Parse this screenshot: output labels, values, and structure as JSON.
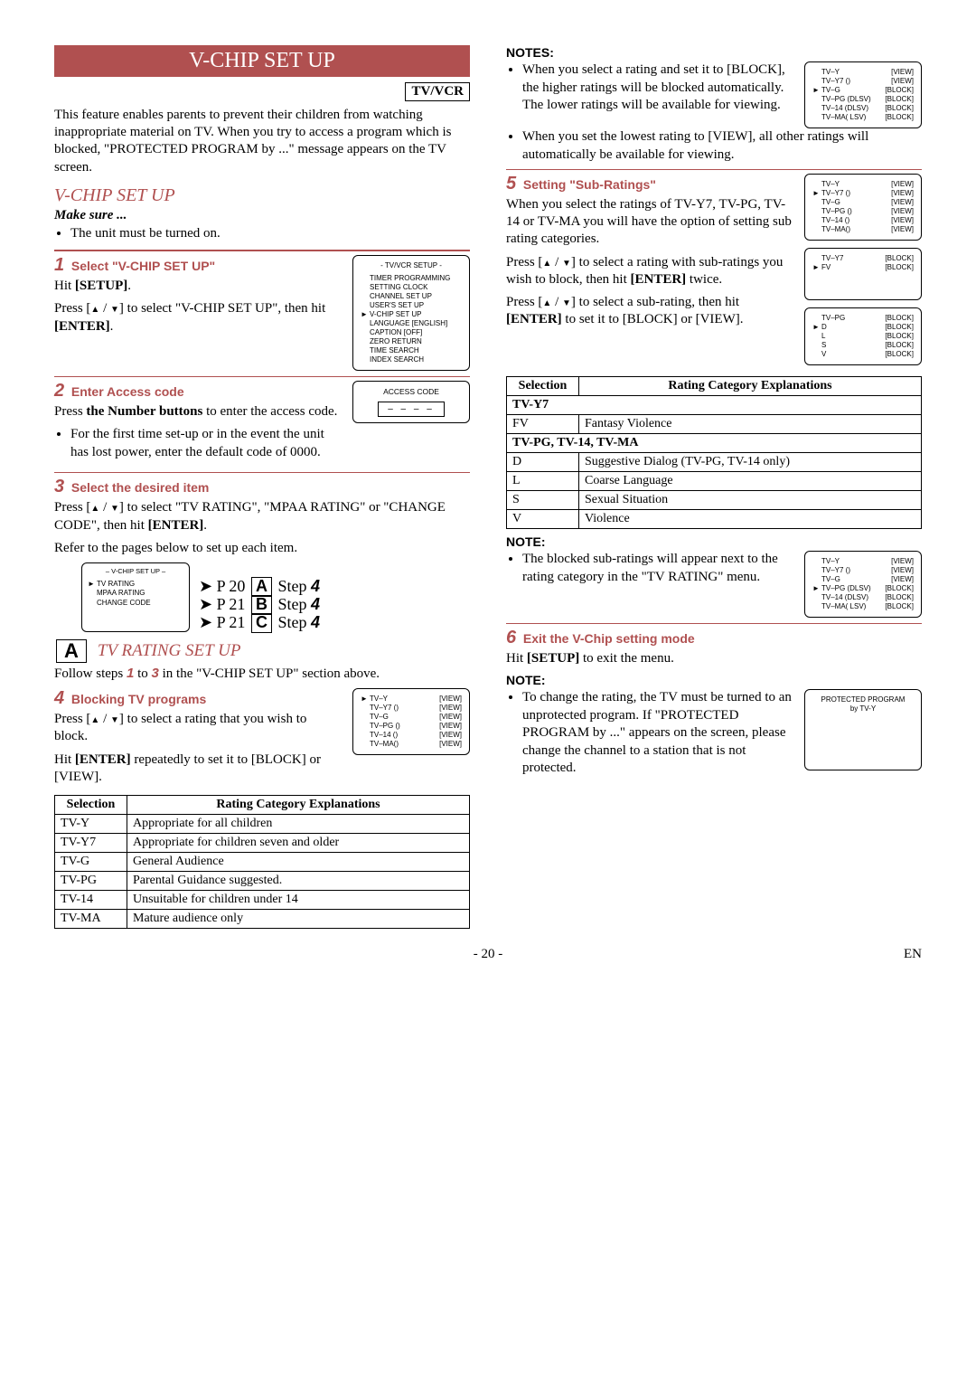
{
  "page_number": "- 20 -",
  "lang_code": "EN",
  "left": {
    "banner": "V-CHIP SET UP",
    "tvvcr": "TV/VCR",
    "intro": "This feature enables parents to prevent their children from watching inappropriate material on TV. When you try to access a program which is blocked, \"PROTECTED PROGRAM by ...\" message appears on the TV screen.",
    "section_ital": "V-CHIP SET UP",
    "makesure": "Make sure ...",
    "makesure_item": "The unit must be turned on.",
    "step1_title": "Select \"V-CHIP SET UP\"",
    "step1_body_a": "Hit ",
    "step1_body_b": "[SETUP]",
    "step1_body_c": ".",
    "step1_body2_a": "Press [",
    "step1_body2_b": "] to select \"V-CHIP SET UP\", then hit ",
    "step1_body2_c": "[ENTER]",
    "step1_body2_d": ".",
    "step2_title": "Enter Access code",
    "step2_body1_a": "Press ",
    "step2_body1_b": "the Number buttons",
    "step2_body1_c": " to enter the access code.",
    "step2_bullet": "For the first time set-up or in the event the unit has lost power, enter the default code of 0000.",
    "step3_title": "Select the desired item",
    "step3_body1_a": "Press [",
    "step3_body1_b": "] to select \"TV RATING\", \"MPAA RATING\" or \"CHANGE CODE\", then hit ",
    "step3_body1_c": "[ENTER]",
    "step3_body1_d": ".",
    "step3_body2": "Refer to the pages below to set up each item.",
    "arrow1": "P 20 ",
    "arrowA": "A",
    "arrowStep": " Step ",
    "arrowNum": "4",
    "arrow2": "P 21 ",
    "arrowB": "B",
    "arrow3": "P 21 ",
    "arrowC": "C",
    "tvrating_title": "TV RATING SET UP",
    "tvrating_intro_a": "Follow steps ",
    "tvrating_intro_b": " to ",
    "tvrating_intro_c": " in the \"V-CHIP SET UP\" section above.",
    "num1": "1",
    "num3": "3",
    "step4_title": "Blocking TV programs",
    "step4_body1_a": "Press [",
    "step4_body1_b": "] to select a rating that you wish to block.",
    "step4_body2_a": "Hit ",
    "step4_body2_b": "[ENTER]",
    "step4_body2_c": " repeatedly to set it to [BLOCK] or [VIEW].",
    "table1": {
      "h1": "Selection",
      "h2": "Rating Category Explanations",
      "rows": [
        [
          "TV-Y",
          "Appropriate for all children"
        ],
        [
          "TV-Y7",
          "Appropriate for children seven and older"
        ],
        [
          "TV-G",
          "General Audience"
        ],
        [
          "TV-PG",
          "Parental Guidance suggested."
        ],
        [
          "TV-14",
          "Unsuitable for children under 14"
        ],
        [
          "TV-MA",
          "Mature audience only"
        ]
      ]
    },
    "osd_setup": {
      "title": "- TV/VCR SETUP -",
      "items": [
        "TIMER PROGRAMMING",
        "SETTING CLOCK",
        "CHANNEL SET UP",
        "USER'S SET UP",
        "V-CHIP SET UP",
        "LANGUAGE   [ENGLISH]",
        "CAPTION   [OFF]",
        "ZERO RETURN",
        "TIME SEARCH",
        "INDEX SEARCH"
      ],
      "cursor_index": 4
    },
    "osd_access": {
      "title": "ACCESS CODE",
      "dashes": "– – – –"
    },
    "osd_vchip": {
      "title": "– V-CHIP SET UP –",
      "items": [
        "TV RATING",
        "MPAA RATING",
        "CHANGE CODE"
      ]
    },
    "osd_tvrating_all_view": {
      "rows": [
        [
          "TV–Y",
          "",
          "[VIEW]"
        ],
        [
          "TV–Y7 (",
          ")",
          "[VIEW]"
        ],
        [
          "TV–G",
          "",
          "[VIEW]"
        ],
        [
          "TV–PG (",
          ")",
          "[VIEW]"
        ],
        [
          "TV–14 (",
          ")",
          "[VIEW]"
        ],
        [
          "TV–MA(",
          ")",
          "[VIEW]"
        ]
      ],
      "cursor_index": 0
    }
  },
  "right": {
    "notes_hd": "NOTES:",
    "note1": "When you select a rating and set it to [BLOCK], the higher ratings will be blocked automatically. The lower ratings will be available for viewing.",
    "note2": "When you set the lowest rating to [VIEW], all other ratings will automatically be available for viewing.",
    "osd_blocked": {
      "rows": [
        [
          "TV–Y",
          "",
          "[VIEW]"
        ],
        [
          "TV–Y7 (",
          ")",
          "[VIEW]"
        ],
        [
          "TV–G",
          "",
          "[BLOCK]"
        ],
        [
          "TV–PG (DLSV)",
          "",
          "[BLOCK]"
        ],
        [
          "TV–14 (DLSV)",
          "",
          "[BLOCK]"
        ],
        [
          "TV–MA(  LSV)",
          "",
          "[BLOCK]"
        ]
      ],
      "cursor_index": 2
    },
    "step5_title": "Setting \"Sub-Ratings\"",
    "step5_body1": "When you select the ratings of TV-Y7, TV-PG, TV-14 or TV-MA you will have the option of setting sub rating categories.",
    "step5_body2_a": "Press [",
    "step5_body2_b": "] to select a rating with sub-ratings you wish to block, then hit ",
    "step5_body2_c": "[ENTER]",
    "step5_body2_d": " twice.",
    "step5_body3_a": "Press [",
    "step5_body3_b": "] to select a sub-rating, then hit ",
    "step5_body3_c": "[ENTER]",
    "step5_body3_d": " to set it to [BLOCK] or [VIEW].",
    "osd_sub_all_view": {
      "rows": [
        [
          "TV–Y",
          "",
          "[VIEW]"
        ],
        [
          "TV–Y7 (",
          ")",
          "[VIEW]"
        ],
        [
          "TV–G",
          "",
          "[VIEW]"
        ],
        [
          "TV–PG (",
          ")",
          "[VIEW]"
        ],
        [
          "TV–14 (",
          ")",
          "[VIEW]"
        ],
        [
          "TV–MA(",
          ")",
          "[VIEW]"
        ]
      ],
      "cursor_index": 1
    },
    "osd_y7_sub": {
      "rows": [
        [
          "TV–Y7",
          "",
          "[BLOCK]"
        ],
        [
          "  FV",
          "",
          "[BLOCK]"
        ]
      ],
      "cursor_index": 1
    },
    "osd_pg_sub": {
      "rows": [
        [
          "TV–PG",
          "",
          "[BLOCK]"
        ],
        [
          "  D",
          "",
          "[BLOCK]"
        ],
        [
          "  L",
          "",
          "[BLOCK]"
        ],
        [
          "  S",
          "",
          "[BLOCK]"
        ],
        [
          "  V",
          "",
          "[BLOCK]"
        ]
      ],
      "cursor_index": 1
    },
    "table2": {
      "h1": "Selection",
      "h2": "Rating Category Explanations",
      "sub1": "TV-Y7",
      "rows1": [
        [
          "FV",
          "Fantasy Violence"
        ]
      ],
      "sub2": "TV-PG, TV-14, TV-MA",
      "rows2": [
        [
          "D",
          "Suggestive Dialog    (TV-PG, TV-14 only)"
        ],
        [
          "L",
          "Coarse Language"
        ],
        [
          "S",
          "Sexual Situation"
        ],
        [
          "V",
          "Violence"
        ]
      ]
    },
    "note_hd2": "NOTE:",
    "note3": "The blocked sub-ratings will appear next to the rating category in the \"TV RATING\" menu.",
    "osd_after_sub": {
      "rows": [
        [
          "TV–Y",
          "",
          "[VIEW]"
        ],
        [
          "TV–Y7 (",
          ")",
          "[VIEW]"
        ],
        [
          "TV–G",
          "",
          "[VIEW]"
        ],
        [
          "TV–PG (DLSV)",
          "",
          "[BLOCK]"
        ],
        [
          "TV–14 (DLSV)",
          "",
          "[BLOCK]"
        ],
        [
          "TV–MA(  LSV)",
          "",
          "[BLOCK]"
        ]
      ],
      "cursor_index": 3
    },
    "step6_title": "Exit the V-Chip setting mode",
    "step6_body_a": "Hit ",
    "step6_body_b": "[SETUP]",
    "step6_body_c": " to exit the menu.",
    "note_hd3": "NOTE:",
    "note4": "To change the rating, the TV must be turned to an unprotected program. If \"PROTECTED PROGRAM by ...\" appears on the screen, please change the channel to a station that is not protected.",
    "osd_protected": {
      "line1": "PROTECTED PROGRAM",
      "line2": "by TV-Y"
    }
  }
}
